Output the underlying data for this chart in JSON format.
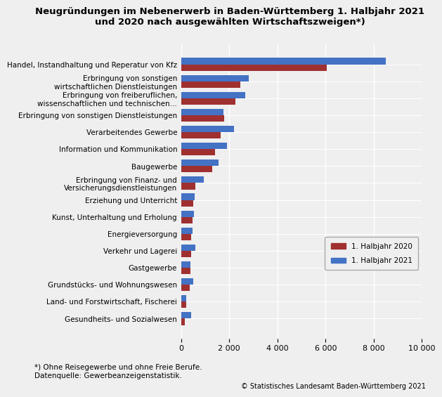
{
  "title": "Neugründungen im Nebenerwerb in Baden-Württemberg 1. Halbjahr 2021\nund 2020 nach ausgewählten Wirtschaftszweigen*)",
  "categories": [
    "Handel, Instandhaltung und Reperatur von Kfz",
    "Erbringung von sonstigen\nwirtschaftlichen Dienstleistungen",
    "Erbringung von freiberuflichen,\nwissenschaftlichen und technischen...",
    "Erbringung von sonstigen Dienstleistungen",
    "Verarbeitendes Gewerbe",
    "Information und Kommunikation",
    "Baugewerbe",
    "Erbringung von Finanz- und\nVersicherungsdienstleistungen",
    "Erziehung und Unterricht",
    "Kunst, Unterhaltung und Erholung",
    "Energieversorgung",
    "Verkehr und Lagerei",
    "Gastgewerbe",
    "Grundstücks- und Wohnungswesen",
    "Land- und Forstwirtschaft, Fischerei",
    "Gesundheits- und Sozialwesen"
  ],
  "values_2020": [
    6050,
    2450,
    2250,
    1800,
    1650,
    1400,
    1300,
    600,
    500,
    480,
    430,
    420,
    380,
    370,
    200,
    150
  ],
  "values_2021": [
    8500,
    2800,
    2650,
    1750,
    2200,
    1900,
    1550,
    950,
    550,
    520,
    480,
    580,
    380,
    500,
    220,
    430
  ],
  "color_2020": "#a03030",
  "color_2021": "#4472c4",
  "legend_2020": "1. Halbjahr 2020",
  "legend_2021": "1. Halbjahr 2021",
  "xlim": [
    0,
    10000
  ],
  "xticks": [
    0,
    2000,
    4000,
    6000,
    8000,
    10000
  ],
  "xtick_labels": [
    "0",
    "2 000",
    "4 000",
    "6 000",
    "8 000",
    "10 000"
  ],
  "footnote1": "*) Ohne Reisegewerbe und ohne Freie Berufe.",
  "footnote2": "Datenquelle: Gewerbeanzeigenstatistik.",
  "copyright": "© Statistisches Landesamt Baden-Württemberg 2021",
  "background_color": "#efefef",
  "grid_color": "#ffffff",
  "title_fontsize": 9.5,
  "label_fontsize": 7.5,
  "tick_fontsize": 8,
  "bar_height": 0.38
}
